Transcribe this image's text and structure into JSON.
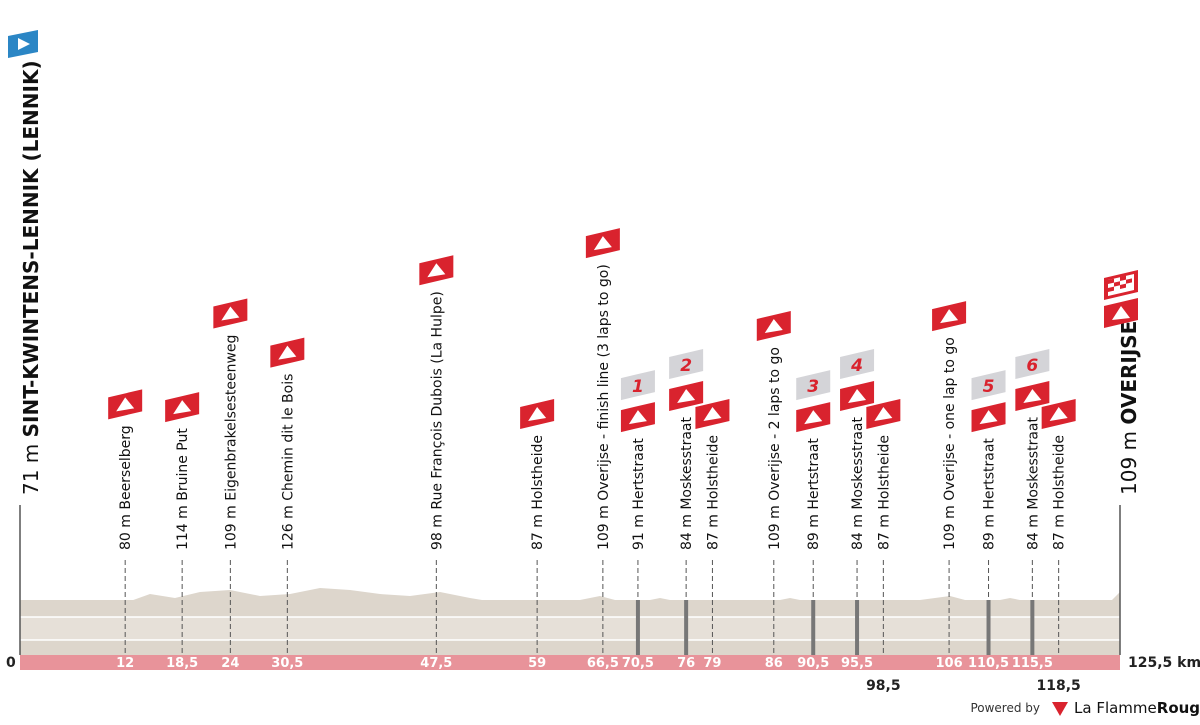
{
  "start": {
    "altitude": "71 m",
    "name": "SINT-KWINTENS-LENNIK (LENNIK)",
    "km": {
      "value": 0,
      "label": "0"
    }
  },
  "finish": {
    "altitude": "109 m",
    "name": "OVERIJSE",
    "km": {
      "value": 125.5,
      "label": "125,5 km"
    }
  },
  "points": [
    {
      "label": "80 m Beerselberg",
      "km": {
        "value": 12,
        "label": "12"
      }
    },
    {
      "label": "114 m Bruine Put",
      "km": {
        "value": 18.5,
        "label": "18,5"
      }
    },
    {
      "label": "109 m Eigenbrakelsesteenweg",
      "km": {
        "value": 24,
        "label": "24"
      }
    },
    {
      "label": "126 m Chemin dit le Bois",
      "km": {
        "value": 30.5,
        "label": "30,5"
      }
    },
    {
      "label": "98 m Rue François Dubois (La Hulpe)",
      "km": {
        "value": 47.5,
        "label": "47,5"
      }
    },
    {
      "label": "87 m Holstheide",
      "km": {
        "value": 59,
        "label": "59"
      }
    },
    {
      "label": "109 m Overijse - finish line (3 laps to go)",
      "km": {
        "value": 66.5,
        "label": "66,5"
      }
    },
    {
      "label": "91 m Hertstraat",
      "km": {
        "value": 70.5,
        "label": "70,5"
      },
      "sector": "1"
    },
    {
      "label": "84 m Moskesstraat",
      "km": {
        "value": 76,
        "label": "76"
      },
      "sector": "2"
    },
    {
      "label": "87 m Holstheide",
      "km": {
        "value": 79,
        "label": "79"
      }
    },
    {
      "label": "109 m Overijse - 2 laps to go",
      "km": {
        "value": 86,
        "label": "86"
      }
    },
    {
      "label": "89 m Hertstraat",
      "km": {
        "value": 90.5,
        "label": "90,5"
      },
      "sector": "3"
    },
    {
      "label": "84 m Moskesstraat",
      "km": {
        "value": 95.5,
        "label": "95,5"
      },
      "sector": "4"
    },
    {
      "label": "87 m Holstheide",
      "km": {
        "value": 98.5,
        "label": "98,5"
      },
      "km_label_below": true
    },
    {
      "label": "109 m Overijse - one lap to go",
      "km": {
        "value": 106,
        "label": "106"
      }
    },
    {
      "label": "89 m Hertstraat",
      "km": {
        "value": 110.5,
        "label": "110,5"
      },
      "sector": "5"
    },
    {
      "label": "84 m Moskesstraat",
      "km": {
        "value": 115.5,
        "label": "115,5"
      },
      "sector": "6"
    },
    {
      "label": "87 m Holstheide",
      "km": {
        "value": 118.5,
        "label": "118,5"
      },
      "km_label_below": true
    }
  ],
  "footer": {
    "powered": "Powered by",
    "brand_a": "La Flamme",
    "brand_b": "Rouge"
  }
}
